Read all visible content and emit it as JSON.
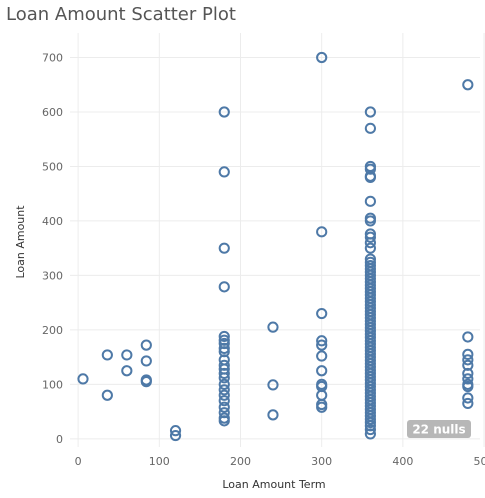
{
  "chart_data": {
    "type": "scatter",
    "title": "Loan Amount Scatter Plot",
    "xlabel": "Loan Amount Term",
    "ylabel": "Loan Amount",
    "xlim": [
      -10,
      495
    ],
    "ylim": [
      -15,
      745
    ],
    "xticks": [
      0,
      100,
      200,
      300,
      400,
      500
    ],
    "yticks": [
      0,
      100,
      200,
      300,
      400,
      500,
      600,
      700
    ],
    "grid": true,
    "null_badge": "22 nulls",
    "colors": {
      "point": "#4e79a7",
      "badge": "#b7b7b7"
    },
    "points": [
      {
        "x": 6,
        "y": 110
      },
      {
        "x": 36,
        "y": 80
      },
      {
        "x": 36,
        "y": 154
      },
      {
        "x": 60,
        "y": 125
      },
      {
        "x": 60,
        "y": 154
      },
      {
        "x": 84,
        "y": 172
      },
      {
        "x": 84,
        "y": 143
      },
      {
        "x": 84,
        "y": 108
      },
      {
        "x": 84,
        "y": 105
      },
      {
        "x": 120,
        "y": 15
      },
      {
        "x": 120,
        "y": 6
      },
      {
        "x": 180,
        "y": 600
      },
      {
        "x": 180,
        "y": 490
      },
      {
        "x": 180,
        "y": 350
      },
      {
        "x": 180,
        "y": 279
      },
      {
        "x": 180,
        "y": 188
      },
      {
        "x": 180,
        "y": 181
      },
      {
        "x": 180,
        "y": 175
      },
      {
        "x": 180,
        "y": 166
      },
      {
        "x": 180,
        "y": 160
      },
      {
        "x": 180,
        "y": 145
      },
      {
        "x": 180,
        "y": 135
      },
      {
        "x": 180,
        "y": 128
      },
      {
        "x": 180,
        "y": 120
      },
      {
        "x": 180,
        "y": 112
      },
      {
        "x": 180,
        "y": 100
      },
      {
        "x": 180,
        "y": 90
      },
      {
        "x": 180,
        "y": 80
      },
      {
        "x": 180,
        "y": 70
      },
      {
        "x": 180,
        "y": 58
      },
      {
        "x": 180,
        "y": 48
      },
      {
        "x": 180,
        "y": 38
      },
      {
        "x": 180,
        "y": 33
      },
      {
        "x": 240,
        "y": 205
      },
      {
        "x": 240,
        "y": 99
      },
      {
        "x": 240,
        "y": 44
      },
      {
        "x": 300,
        "y": 700
      },
      {
        "x": 300,
        "y": 380
      },
      {
        "x": 300,
        "y": 230
      },
      {
        "x": 300,
        "y": 180
      },
      {
        "x": 300,
        "y": 172
      },
      {
        "x": 300,
        "y": 152
      },
      {
        "x": 300,
        "y": 125
      },
      {
        "x": 300,
        "y": 100
      },
      {
        "x": 300,
        "y": 96
      },
      {
        "x": 300,
        "y": 80
      },
      {
        "x": 300,
        "y": 63
      },
      {
        "x": 300,
        "y": 58
      },
      {
        "x": 360,
        "y": 600
      },
      {
        "x": 360,
        "y": 570
      },
      {
        "x": 360,
        "y": 500
      },
      {
        "x": 360,
        "y": 495
      },
      {
        "x": 360,
        "y": 482
      },
      {
        "x": 360,
        "y": 480
      },
      {
        "x": 360,
        "y": 436
      },
      {
        "x": 360,
        "y": 405
      },
      {
        "x": 360,
        "y": 400
      },
      {
        "x": 360,
        "y": 376
      },
      {
        "x": 360,
        "y": 370
      },
      {
        "x": 360,
        "y": 360
      },
      {
        "x": 360,
        "y": 350
      },
      {
        "x": 360,
        "y": 330
      },
      {
        "x": 360,
        "y": 324
      },
      {
        "x": 360,
        "y": 318
      },
      {
        "x": 360,
        "y": 312
      },
      {
        "x": 360,
        "y": 306
      },
      {
        "x": 360,
        "y": 300
      },
      {
        "x": 360,
        "y": 294
      },
      {
        "x": 360,
        "y": 288
      },
      {
        "x": 360,
        "y": 282
      },
      {
        "x": 360,
        "y": 276
      },
      {
        "x": 360,
        "y": 270
      },
      {
        "x": 360,
        "y": 264
      },
      {
        "x": 360,
        "y": 258
      },
      {
        "x": 360,
        "y": 252
      },
      {
        "x": 360,
        "y": 246
      },
      {
        "x": 360,
        "y": 240
      },
      {
        "x": 360,
        "y": 234
      },
      {
        "x": 360,
        "y": 228
      },
      {
        "x": 360,
        "y": 222
      },
      {
        "x": 360,
        "y": 216
      },
      {
        "x": 360,
        "y": 210
      },
      {
        "x": 360,
        "y": 204
      },
      {
        "x": 360,
        "y": 198
      },
      {
        "x": 360,
        "y": 192
      },
      {
        "x": 360,
        "y": 186
      },
      {
        "x": 360,
        "y": 180
      },
      {
        "x": 360,
        "y": 174
      },
      {
        "x": 360,
        "y": 168
      },
      {
        "x": 360,
        "y": 162
      },
      {
        "x": 360,
        "y": 156
      },
      {
        "x": 360,
        "y": 150
      },
      {
        "x": 360,
        "y": 144
      },
      {
        "x": 360,
        "y": 138
      },
      {
        "x": 360,
        "y": 132
      },
      {
        "x": 360,
        "y": 126
      },
      {
        "x": 360,
        "y": 120
      },
      {
        "x": 360,
        "y": 114
      },
      {
        "x": 360,
        "y": 108
      },
      {
        "x": 360,
        "y": 102
      },
      {
        "x": 360,
        "y": 96
      },
      {
        "x": 360,
        "y": 90
      },
      {
        "x": 360,
        "y": 84
      },
      {
        "x": 360,
        "y": 78
      },
      {
        "x": 360,
        "y": 72
      },
      {
        "x": 360,
        "y": 66
      },
      {
        "x": 360,
        "y": 60
      },
      {
        "x": 360,
        "y": 54
      },
      {
        "x": 360,
        "y": 48
      },
      {
        "x": 360,
        "y": 42
      },
      {
        "x": 360,
        "y": 36
      },
      {
        "x": 360,
        "y": 30
      },
      {
        "x": 360,
        "y": 24
      },
      {
        "x": 360,
        "y": 17
      },
      {
        "x": 360,
        "y": 9
      },
      {
        "x": 480,
        "y": 650
      },
      {
        "x": 480,
        "y": 187
      },
      {
        "x": 480,
        "y": 155
      },
      {
        "x": 480,
        "y": 145
      },
      {
        "x": 480,
        "y": 135
      },
      {
        "x": 480,
        "y": 120
      },
      {
        "x": 480,
        "y": 110
      },
      {
        "x": 480,
        "y": 100
      },
      {
        "x": 480,
        "y": 96
      },
      {
        "x": 480,
        "y": 75
      },
      {
        "x": 480,
        "y": 65
      }
    ]
  }
}
